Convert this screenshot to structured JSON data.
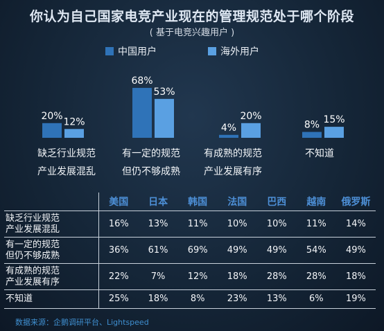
{
  "title": "你认为自己国家电竞产业现在的管理规范处于哪个阶段",
  "subtitle": "( 基于电竞兴趣用户 )",
  "colors": {
    "china": "#2f73b8",
    "overseas": "#5aa0e2",
    "header": "#4d8fd6"
  },
  "chart_data": [
    {
      "type": "bar",
      "categories": [
        [
          "缺乏行业规范",
          "产业发展混乱"
        ],
        [
          "有一定的规范",
          "但仍不够成熟"
        ],
        [
          "有成熟的规范",
          "产业发展有序"
        ],
        [
          "不知道"
        ]
      ],
      "series": [
        {
          "name": "中国用户",
          "values": [
            20,
            68,
            4,
            8
          ],
          "labels": [
            "20%",
            "68%",
            "4%",
            "8%"
          ]
        },
        {
          "name": "海外用户",
          "values": [
            12,
            53,
            20,
            15
          ],
          "labels": [
            "12%",
            "53%",
            "20%",
            "15%"
          ]
        }
      ],
      "legend_position": "top-center",
      "ylim": [
        0,
        70
      ],
      "grid": false
    },
    {
      "type": "table",
      "columns": [
        "美国",
        "日本",
        "韩国",
        "法国",
        "巴西",
        "越南",
        "俄罗斯"
      ],
      "rows": [
        {
          "label": [
            "缺乏行业规范",
            "产业发展混乱"
          ],
          "values": [
            "16%",
            "13%",
            "11%",
            "10%",
            "10%",
            "11%",
            "14%"
          ]
        },
        {
          "label": [
            "有一定的规范",
            "但仍不够成熟"
          ],
          "values": [
            "36%",
            "61%",
            "69%",
            "49%",
            "49%",
            "54%",
            "49%"
          ]
        },
        {
          "label": [
            "有成熟的规范",
            "产业发展有序"
          ],
          "values": [
            "22%",
            "7%",
            "12%",
            "18%",
            "28%",
            "28%",
            "18%"
          ]
        },
        {
          "label": [
            "不知道"
          ],
          "values": [
            "25%",
            "18%",
            "8%",
            "23%",
            "13%",
            "6%",
            "19%"
          ]
        }
      ]
    }
  ],
  "source": "数据来源：企鹅调研平台、Lightspeed"
}
